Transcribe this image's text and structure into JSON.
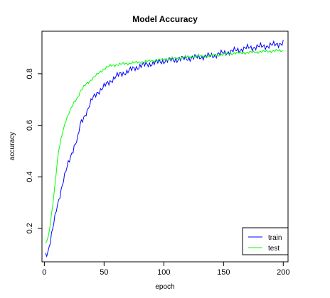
{
  "chart_data": {
    "type": "line",
    "title": "Model Accuracy",
    "xlabel": "epoch",
    "ylabel": "accuracy",
    "xlim": [
      -2,
      204
    ],
    "ylim": [
      0.07,
      0.965
    ],
    "xticks": [
      0,
      50,
      100,
      150,
      200
    ],
    "yticks": [
      0.2,
      0.4,
      0.6,
      0.8
    ],
    "grid": false,
    "legend_position": "bottom-right",
    "series": [
      {
        "name": "train",
        "color": "#0000ff",
        "x": [
          1,
          3,
          5,
          8,
          10,
          12,
          15,
          18,
          20,
          25,
          28,
          30,
          35,
          40,
          45,
          50,
          55,
          60,
          65,
          70,
          75,
          80,
          85,
          90,
          95,
          100,
          110,
          120,
          130,
          140,
          150,
          160,
          170,
          180,
          190,
          200
        ],
        "y": [
          0.1,
          0.11,
          0.15,
          0.22,
          0.27,
          0.31,
          0.37,
          0.42,
          0.45,
          0.52,
          0.55,
          0.6,
          0.65,
          0.7,
          0.73,
          0.75,
          0.77,
          0.79,
          0.8,
          0.81,
          0.82,
          0.83,
          0.835,
          0.84,
          0.845,
          0.85,
          0.855,
          0.86,
          0.865,
          0.87,
          0.88,
          0.89,
          0.9,
          0.905,
          0.91,
          0.92
        ]
      },
      {
        "name": "test",
        "color": "#00ff00",
        "x": [
          1,
          3,
          5,
          8,
          10,
          12,
          15,
          18,
          20,
          25,
          28,
          30,
          35,
          40,
          45,
          50,
          55,
          60,
          70,
          80,
          90,
          100,
          110,
          120,
          130,
          140,
          150,
          160,
          170,
          180,
          190,
          200
        ],
        "y": [
          0.14,
          0.16,
          0.22,
          0.33,
          0.42,
          0.5,
          0.57,
          0.62,
          0.64,
          0.69,
          0.71,
          0.73,
          0.76,
          0.78,
          0.8,
          0.82,
          0.83,
          0.835,
          0.84,
          0.845,
          0.85,
          0.855,
          0.86,
          0.865,
          0.868,
          0.87,
          0.875,
          0.88,
          0.882,
          0.885,
          0.888,
          0.89
        ]
      }
    ]
  }
}
